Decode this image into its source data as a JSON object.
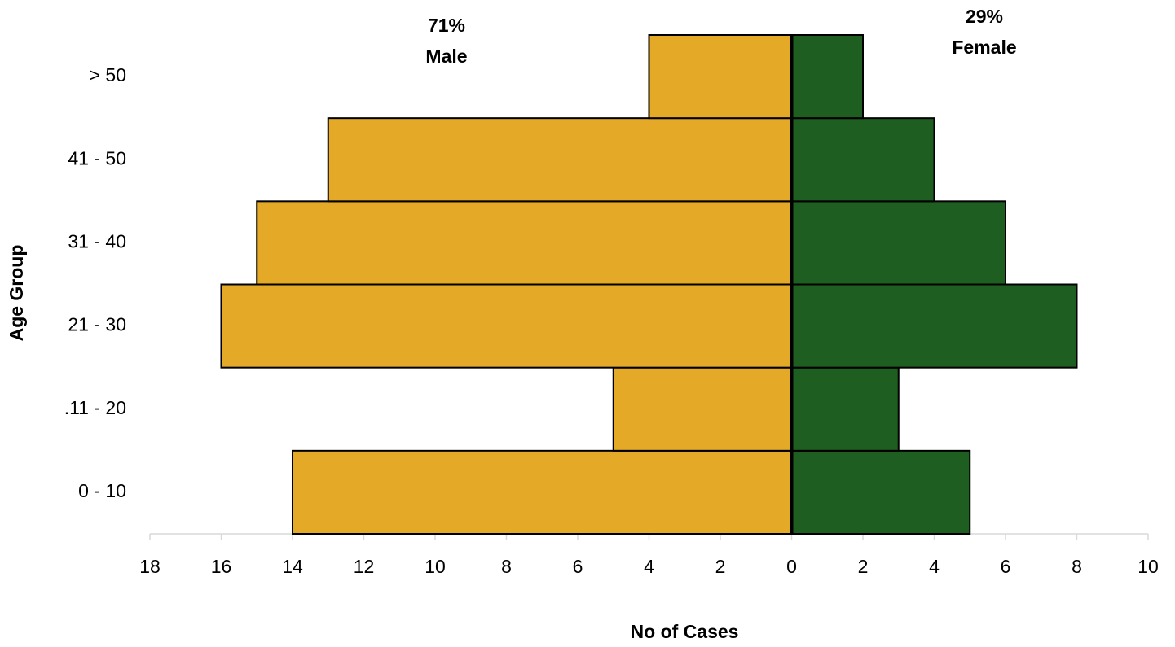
{
  "chart_data": {
    "type": "bar",
    "orientation": "horizontal",
    "categories": [
      "0 - 10",
      ".11 - 20",
      "21 - 30",
      "31 - 40",
      "41 - 50",
      "> 50"
    ],
    "series": [
      {
        "name": "Male",
        "color": "#e3a927",
        "values": [
          -14,
          -5,
          -16,
          -15,
          -13,
          -4
        ]
      },
      {
        "name": "Female",
        "color": "#1e5e20",
        "values": [
          5,
          3,
          8,
          6,
          4,
          2
        ]
      }
    ],
    "annotations": [
      "71%",
      "29%"
    ],
    "xlabel": "No of Cases",
    "ylabel": "Age Group",
    "xlim": [
      -18,
      10
    ],
    "xticks": [
      {
        "value": -18,
        "label": "18"
      },
      {
        "value": -16,
        "label": "16"
      },
      {
        "value": -14,
        "label": "14"
      },
      {
        "value": -12,
        "label": "12"
      },
      {
        "value": -10,
        "label": "10"
      },
      {
        "value": -8,
        "label": "8"
      },
      {
        "value": -6,
        "label": "6"
      },
      {
        "value": -4,
        "label": "4"
      },
      {
        "value": -2,
        "label": "2"
      },
      0,
      2,
      4,
      6,
      8,
      10
    ]
  }
}
